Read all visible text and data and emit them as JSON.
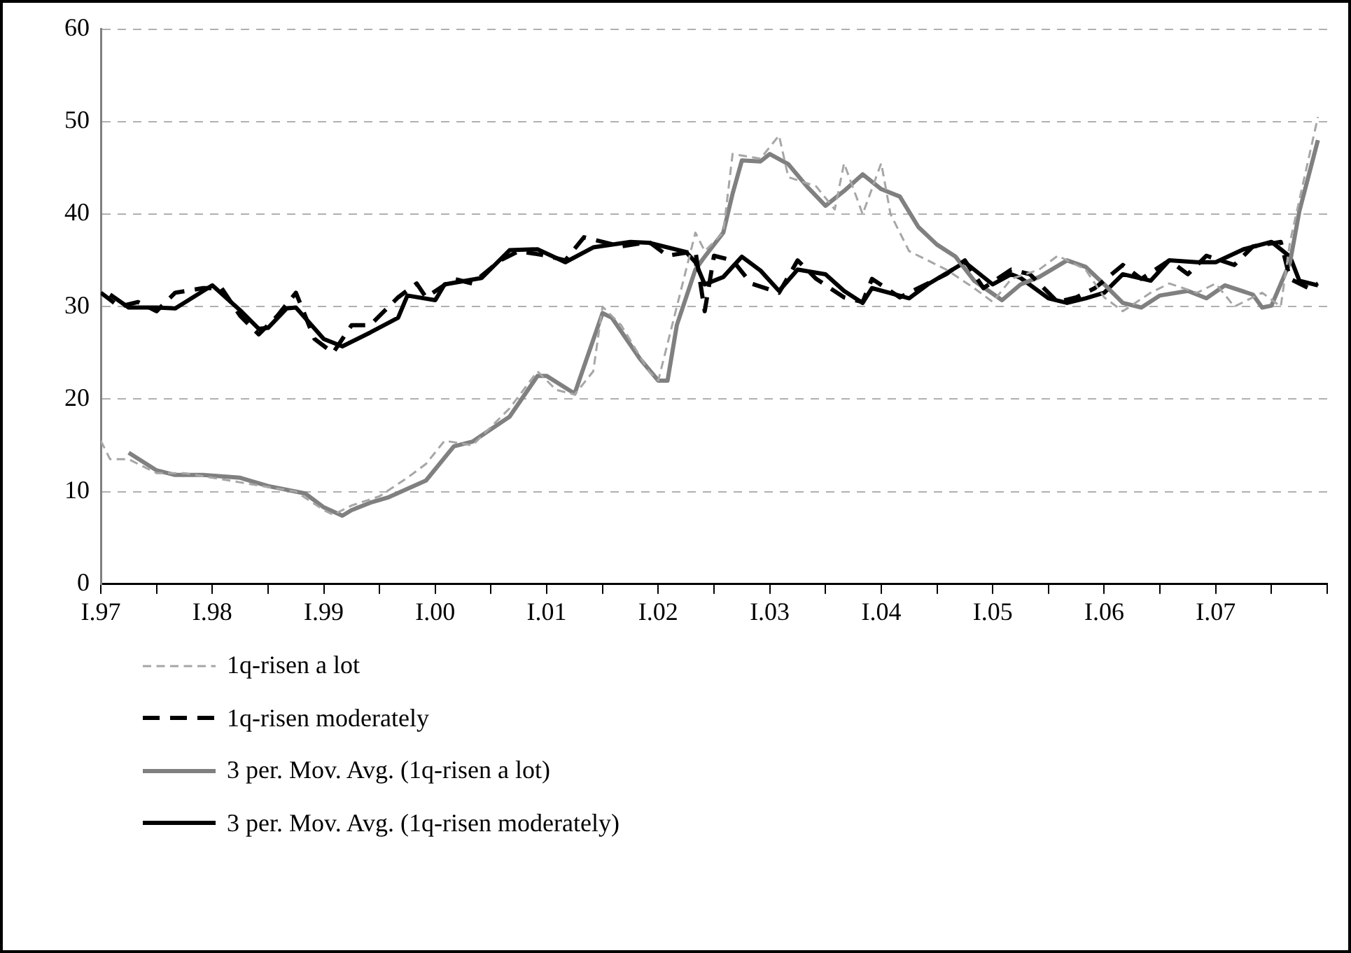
{
  "chart_data": {
    "type": "line",
    "xlim": [
      "1997-01",
      "2008-01"
    ],
    "ylim": [
      0,
      60
    ],
    "xticks": [
      {
        "value": "1997-01",
        "label": "I.97"
      },
      {
        "value": "1997-07",
        "label": null
      },
      {
        "value": "1998-01",
        "label": "I.98"
      },
      {
        "value": "1998-07",
        "label": null
      },
      {
        "value": "1999-01",
        "label": "I.99"
      },
      {
        "value": "1999-07",
        "label": null
      },
      {
        "value": "2000-01",
        "label": "I.00"
      },
      {
        "value": "2000-07",
        "label": null
      },
      {
        "value": "2001-01",
        "label": "I.01"
      },
      {
        "value": "2001-07",
        "label": null
      },
      {
        "value": "2002-01",
        "label": "I.02"
      },
      {
        "value": "2002-07",
        "label": null
      },
      {
        "value": "2003-01",
        "label": "I.03"
      },
      {
        "value": "2003-07",
        "label": null
      },
      {
        "value": "2004-01",
        "label": "I.04"
      },
      {
        "value": "2004-07",
        "label": null
      },
      {
        "value": "2005-01",
        "label": "I.05"
      },
      {
        "value": "2005-07",
        "label": null
      },
      {
        "value": "2006-01",
        "label": "I.06"
      },
      {
        "value": "2006-07",
        "label": null
      },
      {
        "value": "2007-01",
        "label": "I.07"
      },
      {
        "value": "2007-07",
        "label": null
      },
      {
        "value": "2008-01",
        "label": null
      }
    ],
    "yticks": [
      0,
      10,
      20,
      30,
      40,
      50,
      60
    ],
    "grid": "y",
    "legend": "bottom left",
    "marker": "none",
    "series": [
      {
        "name": "1q-risen a lot",
        "color": "#a6a6a6",
        "line_style": "dashed",
        "x": [
          "1997-01",
          "1997-02",
          "1997-04",
          "1997-07",
          "1997-10",
          "1998-01",
          "1998-04",
          "1998-07",
          "1998-10",
          "1999-01",
          "1999-02",
          "1999-04",
          "1999-07",
          "1999-10",
          "1999-12",
          "2000-02",
          "2000-05",
          "2000-07",
          "2000-09",
          "2000-12",
          "2001-02",
          "2001-04",
          "2001-06",
          "2001-07",
          "2001-09",
          "2001-12",
          "2002-01",
          "2002-03",
          "2002-05",
          "2002-06",
          "2002-08",
          "2002-09",
          "2002-12",
          "2003-02",
          "2003-03",
          "2003-06",
          "2003-08",
          "2003-09",
          "2003-11",
          "2004-01",
          "2004-02",
          "2004-04",
          "2004-06",
          "2004-08",
          "2004-11",
          "2005-01",
          "2005-03",
          "2005-06",
          "2005-08",
          "2005-11",
          "2006-01",
          "2006-03",
          "2006-06",
          "2006-08",
          "2006-11",
          "2007-01",
          "2007-03",
          "2007-06",
          "2007-08",
          "2007-09",
          "2007-11",
          "2007-12"
        ],
        "values": [
          15.5,
          13.5,
          13.5,
          12,
          12,
          11.5,
          11,
          10.5,
          10,
          8,
          7.5,
          8.5,
          9.5,
          11.5,
          13,
          15.5,
          15,
          17,
          19,
          23,
          21,
          20.5,
          23,
          30,
          28,
          23,
          22,
          30,
          38,
          36,
          38,
          46.5,
          46,
          48.5,
          44,
          43,
          40.5,
          45.5,
          40,
          45.5,
          40,
          36,
          35,
          34,
          32,
          30.5,
          33,
          34,
          35.5,
          34,
          31,
          29.5,
          31.5,
          32.5,
          31.5,
          32.5,
          30,
          31.5,
          30,
          37,
          46,
          50.5
        ]
      },
      {
        "name": "1q-risen moderately",
        "color": "#000000",
        "line_style": "dashed",
        "x": [
          "1997-01",
          "1997-03",
          "1997-05",
          "1997-07",
          "1997-09",
          "1997-12",
          "1998-02",
          "1998-04",
          "1998-06",
          "1998-08",
          "1998-10",
          "1998-12",
          "1999-02",
          "1999-04",
          "1999-06",
          "1999-09",
          "1999-11",
          "1999-12",
          "2000-03",
          "2000-05",
          "2000-08",
          "2000-10",
          "2001-01",
          "2001-03",
          "2001-05",
          "2001-07",
          "2001-09",
          "2001-12",
          "2002-02",
          "2002-05",
          "2002-06",
          "2002-07",
          "2002-09",
          "2002-11",
          "2003-02",
          "2003-04",
          "2003-06",
          "2003-09",
          "2003-11",
          "2003-12",
          "2004-03",
          "2004-05",
          "2004-08",
          "2004-10",
          "2004-12",
          "2005-03",
          "2005-05",
          "2005-08",
          "2005-10",
          "2005-12",
          "2006-03",
          "2006-05",
          "2006-08",
          "2006-10",
          "2006-12",
          "2007-03",
          "2007-05",
          "2007-08",
          "2007-09",
          "2007-11",
          "2007-12"
        ],
        "values": [
          31.5,
          30,
          30.5,
          29.5,
          31.5,
          32,
          32,
          29,
          27,
          29,
          31.5,
          26.5,
          25,
          28,
          28,
          31,
          32.5,
          31,
          33,
          32.5,
          35,
          36,
          35.5,
          35,
          37.5,
          37,
          36.5,
          37,
          35.5,
          36,
          29.5,
          35.5,
          35,
          32.5,
          31.5,
          35,
          33,
          31,
          30.5,
          33,
          31,
          32,
          33.5,
          35,
          32,
          34,
          33.5,
          30.5,
          31,
          32,
          34.5,
          33,
          35,
          33.5,
          35.5,
          34.5,
          36.5,
          37,
          33,
          32,
          32.5
        ]
      },
      {
        "name": "3 per. Mov. Avg. (1q-risen a lot)",
        "color": "#808080",
        "line_style": "solid",
        "x": [
          "1997-04",
          "1997-07",
          "1997-09",
          "1997-12",
          "1998-04",
          "1998-07",
          "1998-11",
          "1999-01",
          "1999-03",
          "1999-04",
          "1999-06",
          "1999-08",
          "1999-12",
          "2000-03",
          "2000-05",
          "2000-09",
          "2000-12",
          "2001-01",
          "2001-04",
          "2001-07",
          "2001-08",
          "2001-11",
          "2002-01",
          "2002-02",
          "2002-03",
          "2002-05",
          "2002-06",
          "2002-08",
          "2002-09",
          "2002-10",
          "2002-12",
          "2003-01",
          "2003-03",
          "2003-05",
          "2003-07",
          "2003-09",
          "2003-11",
          "2004-01",
          "2004-03",
          "2004-05",
          "2004-07",
          "2004-09",
          "2004-11",
          "2005-02",
          "2005-04",
          "2005-06",
          "2005-09",
          "2005-11",
          "2006-01",
          "2006-03",
          "2006-05",
          "2006-07",
          "2006-10",
          "2006-12",
          "2007-02",
          "2007-05",
          "2007-06",
          "2007-07",
          "2007-09",
          "2007-10",
          "2007-12"
        ],
        "values": [
          14.2,
          12.3,
          11.8,
          11.8,
          11.5,
          10.6,
          9.8,
          8.3,
          7.4,
          8,
          8.8,
          9.4,
          11.2,
          14.9,
          15.4,
          18.1,
          22.5,
          22.5,
          20.6,
          29.3,
          28.8,
          24.4,
          22,
          22,
          28,
          34,
          35.4,
          38,
          42.2,
          45.8,
          45.7,
          46.5,
          45.4,
          43,
          40.9,
          42.5,
          44.3,
          42.7,
          41.9,
          38.6,
          36.7,
          35.4,
          32.8,
          30.7,
          32.4,
          33.2,
          35,
          34.3,
          32.4,
          30.4,
          29.9,
          31.2,
          31.7,
          30.9,
          32.3,
          31.3,
          29.9,
          30.1,
          34.8,
          40.3,
          48
        ]
      },
      {
        "name": "3 per. Mov. Avg. (1q-risen moderately)",
        "color": "#000000",
        "line_style": "solid",
        "x": [
          "1997-02",
          "1997-04",
          "1997-07",
          "1997-09",
          "1998-01",
          "1998-04",
          "1998-06",
          "1998-07",
          "1998-09",
          "1998-10",
          "1999-01",
          "1999-03",
          "1999-06",
          "1999-09",
          "1999-10",
          "2000-01",
          "2000-02",
          "2000-06",
          "2000-09",
          "2000-12",
          "2001-03",
          "2001-06",
          "2001-10",
          "2001-12",
          "2002-04",
          "2002-05",
          "2002-06",
          "2002-08",
          "2002-10",
          "2002-12",
          "2003-02",
          "2003-04",
          "2003-07",
          "2003-09",
          "2003-11",
          "2003-12",
          "2004-04",
          "2004-06",
          "2004-10",
          "2005-01",
          "2005-03",
          "2005-04",
          "2005-07",
          "2005-09",
          "2005-11",
          "2006-01",
          "2006-03",
          "2006-06",
          "2006-08",
          "2006-11",
          "2007-01",
          "2007-04",
          "2007-07",
          "2007-09",
          "2007-10",
          "2007-12"
        ],
        "values": [
          31.3,
          29.9,
          29.9,
          29.8,
          32.3,
          29.6,
          27.6,
          27.7,
          29.8,
          29.9,
          26.5,
          25.7,
          27.2,
          28.8,
          31.2,
          30.7,
          32.4,
          33.1,
          36.1,
          36.2,
          34.8,
          36.4,
          37,
          36.9,
          35.9,
          34.8,
          32.4,
          33.2,
          35.4,
          33.9,
          31.7,
          34,
          33.5,
          31.7,
          30.4,
          32,
          30.9,
          32.4,
          34.8,
          32.4,
          33.5,
          33.1,
          30.9,
          30.4,
          30.9,
          31.5,
          33.5,
          32.8,
          35,
          34.8,
          34.8,
          36.2,
          37,
          35.4,
          32.8,
          32.3
        ]
      }
    ]
  }
}
